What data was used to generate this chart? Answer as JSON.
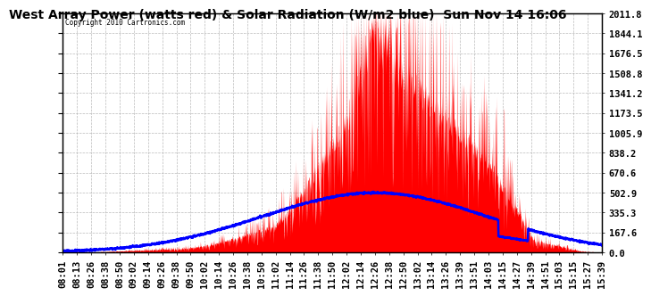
{
  "title": "West Array Power (watts red) & Solar Radiation (W/m2 blue)  Sun Nov 14 16:06",
  "copyright": "Copyright 2010 Cartronics.com",
  "yticks": [
    0.0,
    167.6,
    335.3,
    502.9,
    670.6,
    838.2,
    1005.9,
    1173.5,
    1341.2,
    1508.8,
    1676.5,
    1844.1,
    2011.8
  ],
  "ymax": 2011.8,
  "ymin": 0.0,
  "xtick_labels": [
    "08:01",
    "08:13",
    "08:26",
    "08:38",
    "08:50",
    "09:02",
    "09:14",
    "09:26",
    "09:38",
    "09:50",
    "10:02",
    "10:14",
    "10:26",
    "10:38",
    "10:50",
    "11:02",
    "11:14",
    "11:26",
    "11:38",
    "11:50",
    "12:02",
    "12:14",
    "12:26",
    "12:38",
    "12:50",
    "13:02",
    "13:14",
    "13:26",
    "13:39",
    "13:51",
    "14:03",
    "14:15",
    "14:27",
    "14:39",
    "14:51",
    "15:03",
    "15:15",
    "15:27",
    "15:39"
  ],
  "bg_color": "#ffffff",
  "plot_bg_color": "#ffffff",
  "grid_color": "#aaaaaa",
  "red_color": "#ff0000",
  "blue_color": "#0000ff",
  "title_fontsize": 10,
  "tick_fontsize": 7.5
}
